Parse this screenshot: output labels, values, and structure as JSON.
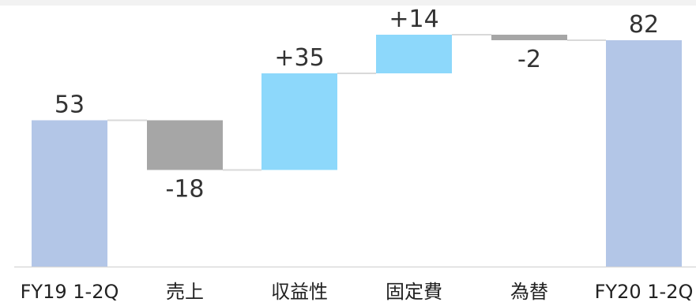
{
  "chart_data": {
    "type": "waterfall",
    "categories": [
      "FY19 1-2Q",
      "売上",
      "収益性",
      "固定費",
      "為替",
      "FY20 1-2Q"
    ],
    "values": [
      53,
      -18,
      35,
      14,
      -2,
      82
    ],
    "labels": [
      "53",
      "-18",
      "+35",
      "+14",
      "-2",
      "82"
    ],
    "kinds": [
      "total",
      "delta",
      "delta",
      "delta",
      "delta",
      "total"
    ],
    "ylim": [
      0,
      90
    ],
    "grid": false,
    "legend": "none"
  },
  "colors": {
    "total": "#b3c6e7",
    "increase": "#8dd8fb",
    "decrease": "#a6a6a6",
    "connector": "#d9d9d9",
    "background_band": "#f2f2f2",
    "baseline": "#d9d9d9"
  }
}
